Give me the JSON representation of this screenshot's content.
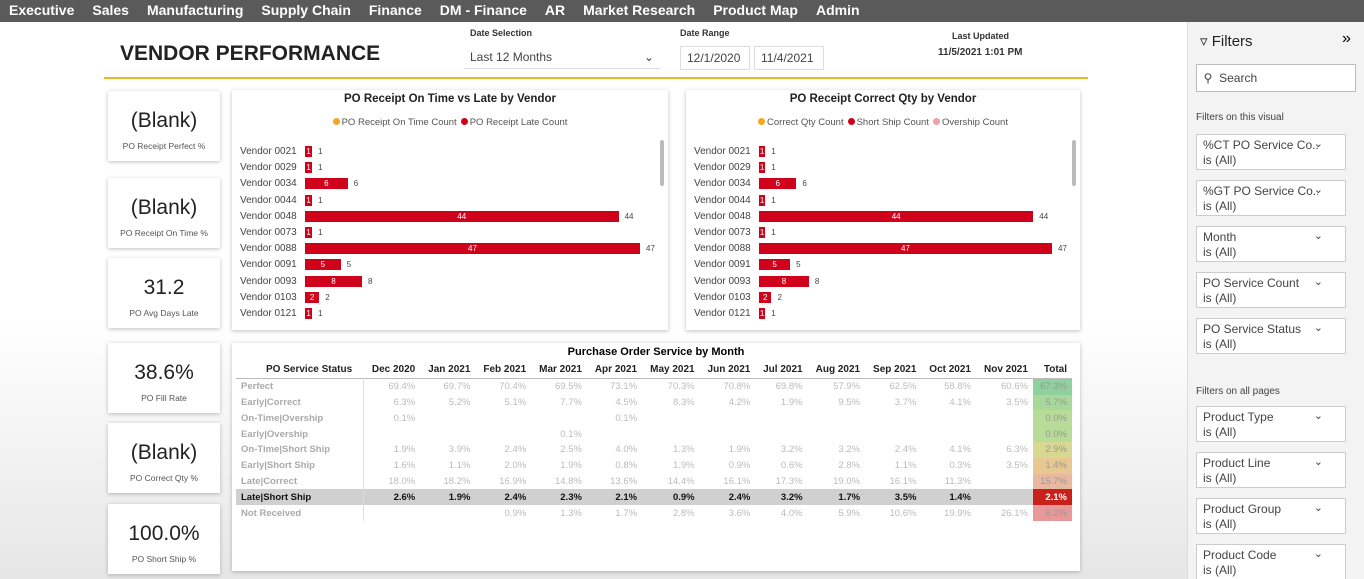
{
  "nav": [
    "Executive",
    "Sales",
    "Manufacturing",
    "Supply Chain",
    "Finance",
    "DM - Finance",
    "AR",
    "Market Research",
    "Product Map",
    "Admin"
  ],
  "header": {
    "title": "VENDOR PERFORMANCE",
    "date_selection_label": "Date Selection",
    "date_selection_value": "Last 12 Months",
    "date_range_label": "Date Range",
    "date_from": "12/1/2020",
    "date_to": "11/4/2021",
    "last_updated_label": "Last Updated",
    "last_updated_value": "11/5/2021 1:01 PM"
  },
  "kpis": [
    {
      "value": "(Blank)",
      "label": "PO Receipt Perfect %"
    },
    {
      "value": "(Blank)",
      "label": "PO Receipt On Time %"
    },
    {
      "value": "31.2",
      "label": "PO Avg Days Late"
    },
    {
      "value": "38.6%",
      "label": "PO Fill Rate"
    },
    {
      "value": "(Blank)",
      "label": "PO Correct Qty %"
    },
    {
      "value": "100.0%",
      "label": "PO Short Ship %"
    }
  ],
  "charts": [
    {
      "type": "bar",
      "title": "PO Receipt On Time vs Late by Vendor",
      "legend": [
        {
          "name": "PO Receipt On Time Count",
          "color": "#f5a623"
        },
        {
          "name": "PO Receipt Late Count",
          "color": "#d0021b"
        }
      ],
      "categories": [
        "Vendor 0021",
        "Vendor 0029",
        "Vendor 0034",
        "Vendor 0044",
        "Vendor 0048",
        "Vendor 0073",
        "Vendor 0088",
        "Vendor 0091",
        "Vendor 0093",
        "Vendor 0103",
        "Vendor 0121"
      ],
      "values": [
        1,
        1,
        6,
        1,
        44,
        1,
        47,
        5,
        8,
        2,
        1
      ],
      "color": "#d0021b"
    },
    {
      "type": "bar",
      "title": "PO Receipt Correct Qty by Vendor",
      "legend": [
        {
          "name": "Correct Qty Count",
          "color": "#f5a623"
        },
        {
          "name": "Short Ship Count",
          "color": "#d0021b"
        },
        {
          "name": "Overship Count",
          "color": "#f0a0a8"
        }
      ],
      "categories": [
        "Vendor 0021",
        "Vendor 0029",
        "Vendor 0034",
        "Vendor 0044",
        "Vendor 0048",
        "Vendor 0073",
        "Vendor 0088",
        "Vendor 0091",
        "Vendor 0093",
        "Vendor 0103",
        "Vendor 0121"
      ],
      "values": [
        1,
        1,
        6,
        1,
        44,
        1,
        47,
        5,
        8,
        2,
        1
      ],
      "color": "#d0021b"
    }
  ],
  "table": {
    "title": "Purchase Order Service by Month",
    "columns": [
      "PO Service Status",
      "Dec 2020",
      "Jan 2021",
      "Feb 2021",
      "Mar 2021",
      "Apr 2021",
      "May 2021",
      "Jun 2021",
      "Jul 2021",
      "Aug 2021",
      "Sep 2021",
      "Oct 2021",
      "Nov 2021",
      "Total"
    ],
    "rows": [
      [
        "Perfect",
        "69.4%",
        "69.7%",
        "70.4%",
        "69.5%",
        "73.1%",
        "70.3%",
        "70.8%",
        "69.8%",
        "57.9%",
        "62.5%",
        "58.8%",
        "60.6%",
        "67.3%"
      ],
      [
        "Early|Correct",
        "6.3%",
        "5.2%",
        "5.1%",
        "7.7%",
        "4.5%",
        "8.3%",
        "4.2%",
        "1.9%",
        "9.5%",
        "3.7%",
        "4.1%",
        "3.5%",
        "5.7%"
      ],
      [
        "On-Time|Overship",
        "0.1%",
        null,
        null,
        null,
        "0.1%",
        null,
        null,
        null,
        null,
        null,
        null,
        null,
        "0.0%"
      ],
      [
        "Early|Overship",
        null,
        null,
        null,
        "0.1%",
        null,
        null,
        null,
        null,
        null,
        null,
        null,
        null,
        "0.0%"
      ],
      [
        "On-Time|Short Ship",
        "1.9%",
        "3.9%",
        "2.4%",
        "2.5%",
        "4.0%",
        "1.3%",
        "1.9%",
        "3.2%",
        "3.2%",
        "2.4%",
        "4.1%",
        "6.3%",
        "2.9%"
      ],
      [
        "Early|Short Ship",
        "1.6%",
        "1.1%",
        "2.0%",
        "1.9%",
        "0.8%",
        "1.9%",
        "0.9%",
        "0.6%",
        "2.8%",
        "1.1%",
        "0.3%",
        "3.5%",
        "1.4%"
      ],
      [
        "Late|Correct",
        "18.0%",
        "18.2%",
        "16.9%",
        "14.8%",
        "13.6%",
        "14.4%",
        "16.1%",
        "17.3%",
        "19.0%",
        "16.1%",
        "11.3%",
        null,
        "15.7%"
      ],
      [
        "Late|Short Ship",
        "2.6%",
        "1.9%",
        "2.4%",
        "2.3%",
        "2.1%",
        "0.9%",
        "2.4%",
        "3.2%",
        "1.7%",
        "3.5%",
        "1.4%",
        null,
        "2.1%"
      ],
      [
        "Not Received",
        null,
        null,
        "0.9%",
        "1.3%",
        "1.7%",
        "2.8%",
        "3.6%",
        "4.0%",
        "5.9%",
        "10.6%",
        "19.9%",
        "26.1%",
        "6.2%"
      ]
    ],
    "total_colors": [
      "#8fd19e",
      "#a8d89a",
      "#b8dc98",
      "#b8dc98",
      "#d8d890",
      "#e8c890",
      "#e8b8a0",
      "#c8201a",
      "#e89898"
    ]
  },
  "filters": {
    "title": "Filters",
    "search": "Search",
    "visual_heading": "Filters on this visual",
    "pages_heading": "Filters on all pages",
    "visual": [
      {
        "name": "%CT PO Service Co...",
        "state": "is (All)"
      },
      {
        "name": "%GT PO Service Co...",
        "state": "is (All)"
      },
      {
        "name": "Month",
        "state": "is (All)"
      },
      {
        "name": "PO Service Count",
        "state": "is (All)"
      },
      {
        "name": "PO Service Status",
        "state": "is (All)"
      }
    ],
    "pages": [
      {
        "name": "Product Type",
        "state": "is (All)"
      },
      {
        "name": "Product Line",
        "state": "is (All)"
      },
      {
        "name": "Product Group",
        "state": "is (All)"
      },
      {
        "name": "Product Code",
        "state": "is (All)"
      }
    ]
  }
}
